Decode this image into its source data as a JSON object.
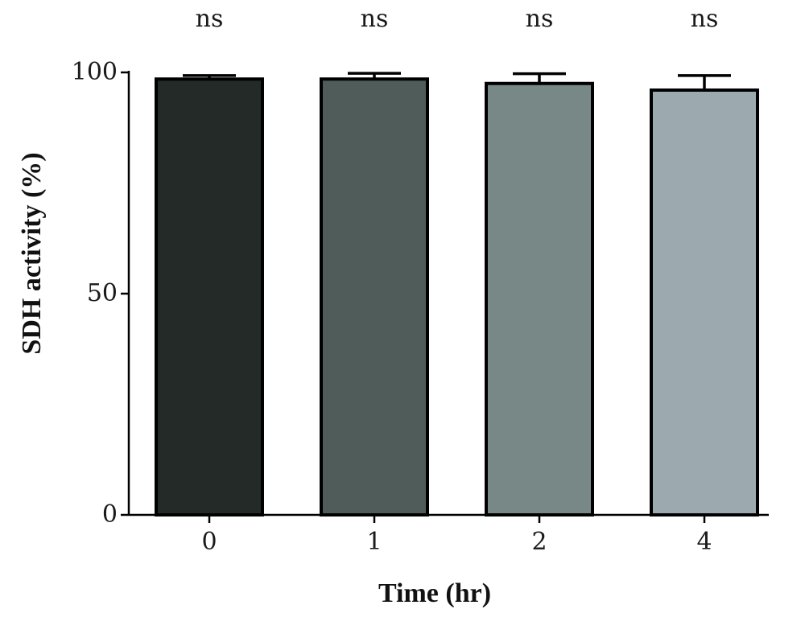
{
  "chart_data": {
    "type": "bar",
    "categories": [
      "0",
      "1",
      "2",
      "4"
    ],
    "values": [
      98.5,
      98.5,
      97.5,
      96
    ],
    "errors": [
      0.8,
      1.3,
      2.2,
      3.3
    ],
    "annotations": [
      "ns",
      "ns",
      "ns",
      "ns"
    ],
    "xlabel": "Time (hr)",
    "ylabel": "SDH activity (%)",
    "ylim": [
      0,
      100
    ],
    "yticks": [
      0,
      50,
      100
    ],
    "grid": false,
    "colors": [
      "#232a28",
      "#4f5c5a",
      "#788886",
      "#9caab0"
    ]
  }
}
